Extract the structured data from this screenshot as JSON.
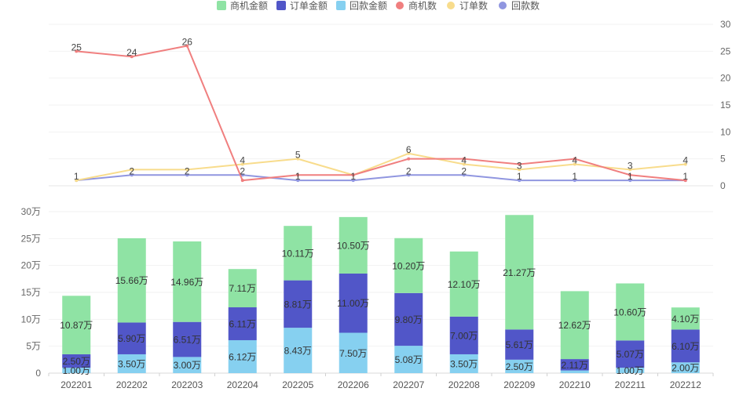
{
  "colors": {
    "opp_amount": "#8fe3a4",
    "order_amount": "#5156c8",
    "payment_amount": "#86d0f0",
    "opp_count": "#f07f7f",
    "order_count": "#f8dc8c",
    "payment_count": "#9096e0"
  },
  "legend": [
    {
      "label": "商机金额",
      "shape": "rect",
      "color": "#8fe3a4"
    },
    {
      "label": "订单金额",
      "shape": "rect",
      "color": "#5156c8"
    },
    {
      "label": "回款金额",
      "shape": "rect",
      "color": "#86d0f0"
    },
    {
      "label": "商机数",
      "shape": "circle",
      "color": "#f07f7f"
    },
    {
      "label": "订单数",
      "shape": "circle",
      "color": "#f8dc8c"
    },
    {
      "label": "回款数",
      "shape": "circle",
      "color": "#9096e0"
    }
  ],
  "chart_data": [
    {
      "type": "line",
      "categories": [
        "202201",
        "202202",
        "202203",
        "202204",
        "202205",
        "202206",
        "202207",
        "202208",
        "202209",
        "202210",
        "202211",
        "202212"
      ],
      "y_axis": {
        "position": "right",
        "min": 0,
        "max": 30,
        "ticks": [
          "0",
          "5",
          "10",
          "15",
          "20",
          "25",
          "30"
        ]
      },
      "series": [
        {
          "name": "商机数",
          "values": [
            25,
            24,
            26,
            1,
            2,
            2,
            5,
            5,
            4,
            5,
            2,
            1
          ],
          "labels": [
            "25",
            "24",
            "26",
            "",
            "",
            "",
            "",
            "",
            "",
            "",
            "",
            ""
          ]
        },
        {
          "name": "订单数",
          "values": [
            1,
            3,
            3,
            4,
            5,
            2,
            6,
            4,
            3,
            4,
            3,
            4
          ],
          "labels": [
            "",
            "",
            "",
            "4",
            "5",
            "",
            "6",
            "4",
            "3",
            "4",
            "3",
            "4"
          ]
        },
        {
          "name": "回款数",
          "values": [
            1,
            2,
            2,
            2,
            1,
            1,
            2,
            2,
            1,
            1,
            1,
            1
          ],
          "labels": [
            "1",
            "2",
            "2",
            "2",
            "1",
            "1",
            "2",
            "2",
            "1",
            "1",
            "1",
            "1"
          ]
        }
      ]
    },
    {
      "type": "bar",
      "stacked": true,
      "categories": [
        "202201",
        "202202",
        "202203",
        "202204",
        "202205",
        "202206",
        "202207",
        "202208",
        "202209",
        "202210",
        "202211",
        "202212"
      ],
      "y_axis": {
        "position": "left",
        "min": 0,
        "max": 30,
        "ticks": [
          "0",
          "5万",
          "10万",
          "15万",
          "20万",
          "25万",
          "30万"
        ]
      },
      "series": [
        {
          "name": "回款金额",
          "values": [
            1.0,
            3.5,
            3.0,
            6.12,
            8.43,
            7.5,
            5.08,
            3.5,
            2.5,
            0.5,
            1.0,
            2.0
          ],
          "labels": [
            "1.00万",
            "3.50万",
            "3.00万",
            "6.12万",
            "8.43万",
            "7.50万",
            "5.08万",
            "3.50万",
            "2.50万",
            "",
            "1.00万",
            "2.00万"
          ]
        },
        {
          "name": "订单金额",
          "values": [
            2.5,
            5.9,
            6.51,
            6.11,
            8.81,
            11.0,
            9.8,
            7.0,
            5.61,
            2.11,
            5.07,
            6.1
          ],
          "labels": [
            "2.50万",
            "5.90万",
            "6.51万",
            "6.11万",
            "8.81万",
            "11.00万",
            "9.80万",
            "7.00万",
            "5.61万",
            "2.11万",
            "5.07万",
            "6.10万"
          ]
        },
        {
          "name": "商机金额",
          "values": [
            10.87,
            15.66,
            14.96,
            7.11,
            10.11,
            10.5,
            10.2,
            12.1,
            21.27,
            12.62,
            10.6,
            4.1
          ],
          "labels": [
            "10.87万",
            "15.66万",
            "14.96万",
            "7.11万",
            "10.11万",
            "10.50万",
            "10.20万",
            "12.10万",
            "21.27万",
            "12.62万",
            "10.60万",
            "4.10万"
          ]
        }
      ]
    }
  ]
}
